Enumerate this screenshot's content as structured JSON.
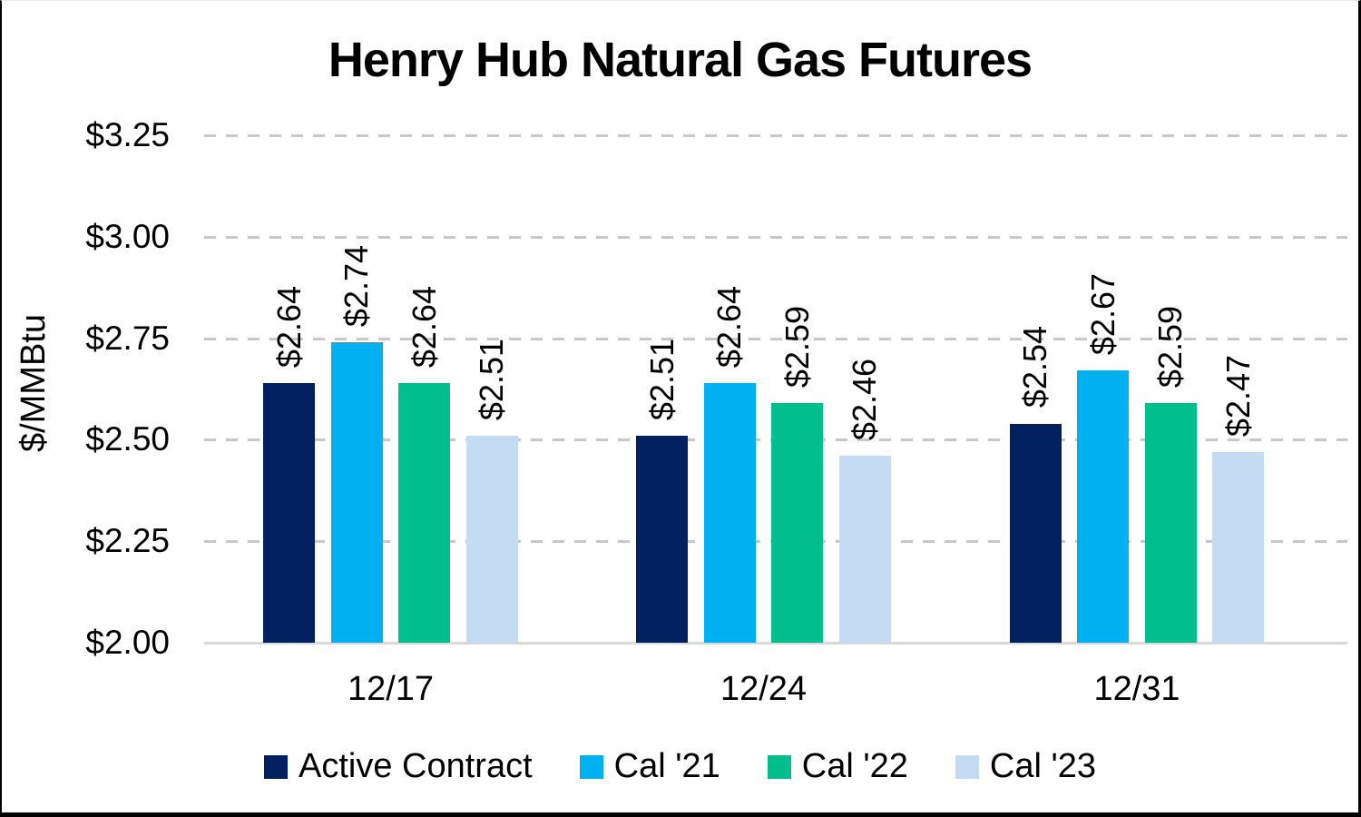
{
  "figure": {
    "title": "Henry Hub Natural Gas Futures"
  },
  "chart_data": {
    "type": "bar",
    "title": "Henry Hub Natural Gas Futures",
    "xlabel": "",
    "ylabel": "$/MMBtu",
    "categories": [
      "12/17",
      "12/24",
      "12/31"
    ],
    "series": [
      {
        "name": "Active Contract",
        "color": "#002060",
        "values": [
          2.64,
          2.51,
          2.54
        ],
        "labels": [
          "$2.64",
          "$2.51",
          "$2.54"
        ]
      },
      {
        "name": "Cal '21",
        "color": "#00B0F0",
        "values": [
          2.74,
          2.64,
          2.67
        ],
        "labels": [
          "$2.74",
          "$2.64",
          "$2.67"
        ]
      },
      {
        "name": "Cal '22",
        "color": "#00BF8C",
        "values": [
          2.64,
          2.59,
          2.59
        ],
        "labels": [
          "$2.64",
          "$2.59",
          "$2.59"
        ]
      },
      {
        "name": "Cal '23",
        "color": "#C4DBF4",
        "values": [
          2.51,
          2.46,
          2.47
        ],
        "labels": [
          "$2.51",
          "$2.46",
          "$2.47"
        ]
      }
    ],
    "ylim": [
      2.0,
      3.25
    ],
    "ytick_step": 0.25,
    "ytick_labels": [
      "$2.00",
      "$2.25",
      "$2.50",
      "$2.75",
      "$3.00",
      "$3.25"
    ],
    "grid": "horizontal-dashed",
    "legend_position": "bottom",
    "value_label_rotation": 90,
    "colors": {
      "gridline": "#c8c8c8",
      "axis_line": "#d9d9d9",
      "text": "#000000",
      "background": "#ffffff"
    }
  }
}
